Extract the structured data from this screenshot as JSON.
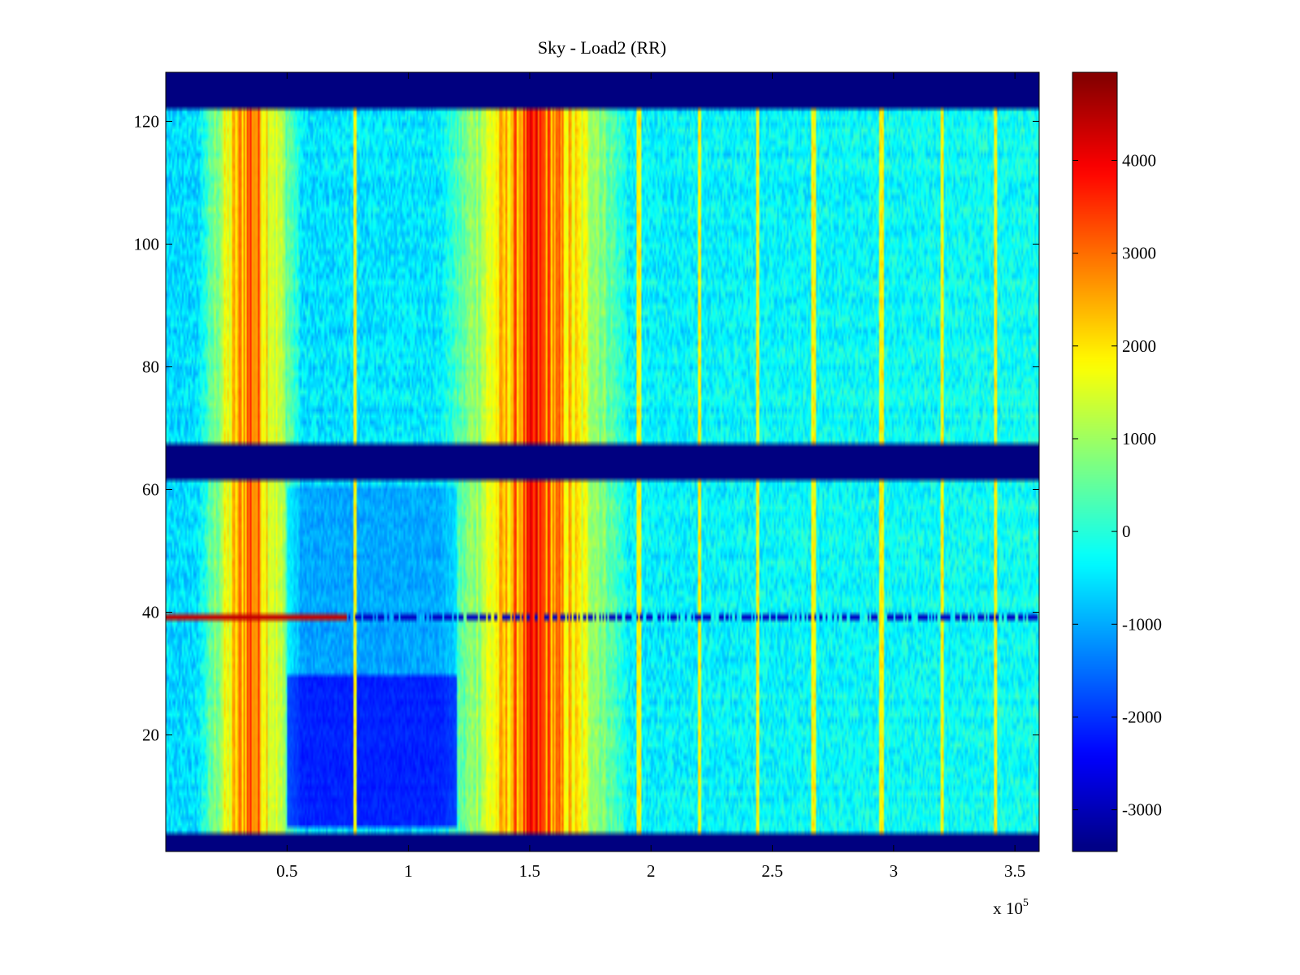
{
  "chart_data": {
    "type": "heatmap",
    "title": "Sky - Load2 (RR)",
    "xlabel": "",
    "ylabel": "",
    "x_multiplier_label": "x 10",
    "x_multiplier_exponent": "5",
    "xlim": [
      0,
      3.6
    ],
    "ylim": [
      1,
      128
    ],
    "xticks": [
      {
        "value": 0.5,
        "label": "0.5"
      },
      {
        "value": 1,
        "label": "1"
      },
      {
        "value": 1.5,
        "label": "1.5"
      },
      {
        "value": 2,
        "label": "2"
      },
      {
        "value": 2.5,
        "label": "2.5"
      },
      {
        "value": 3,
        "label": "3"
      },
      {
        "value": 3.5,
        "label": "3.5"
      }
    ],
    "yticks": [
      {
        "value": 20,
        "label": "20"
      },
      {
        "value": 40,
        "label": "40"
      },
      {
        "value": 60,
        "label": "60"
      },
      {
        "value": 80,
        "label": "80"
      },
      {
        "value": 100,
        "label": "100"
      },
      {
        "value": 120,
        "label": "120"
      }
    ],
    "colorbar": {
      "colormap": "jet",
      "range": [
        -3450,
        4950
      ],
      "ticks": [
        {
          "value": 4000,
          "label": "4000"
        },
        {
          "value": 3000,
          "label": "3000"
        },
        {
          "value": 2000,
          "label": "2000"
        },
        {
          "value": 1000,
          "label": "1000"
        },
        {
          "value": 0,
          "label": "0"
        },
        {
          "value": -1000,
          "label": "-1000"
        },
        {
          "value": -2000,
          "label": "-2000"
        },
        {
          "value": -3000,
          "label": "-3000"
        }
      ]
    },
    "masked_row_bands": [
      [
        1,
        4
      ],
      [
        62,
        67
      ],
      [
        122,
        128
      ]
    ],
    "masked_value": -3450,
    "hot_column_bands": [
      {
        "x_start": 0.25,
        "x_end": 0.45,
        "peak": 4200
      },
      {
        "x_start": 1.25,
        "x_end": 1.8,
        "peak": 4600
      }
    ],
    "cold_region": {
      "x_start": 0.5,
      "x_end": 1.2,
      "y_start": 5,
      "y_end": 30,
      "value": -3000
    },
    "background_value": -600,
    "narrow_lines_x": [
      0.78,
      1.95,
      2.2,
      2.44,
      2.67,
      2.95,
      3.2,
      3.42
    ],
    "anomalous_row": {
      "y": 39,
      "hot_until_x": 0.75,
      "hot_value": 4400,
      "cold_value": -2900
    }
  }
}
